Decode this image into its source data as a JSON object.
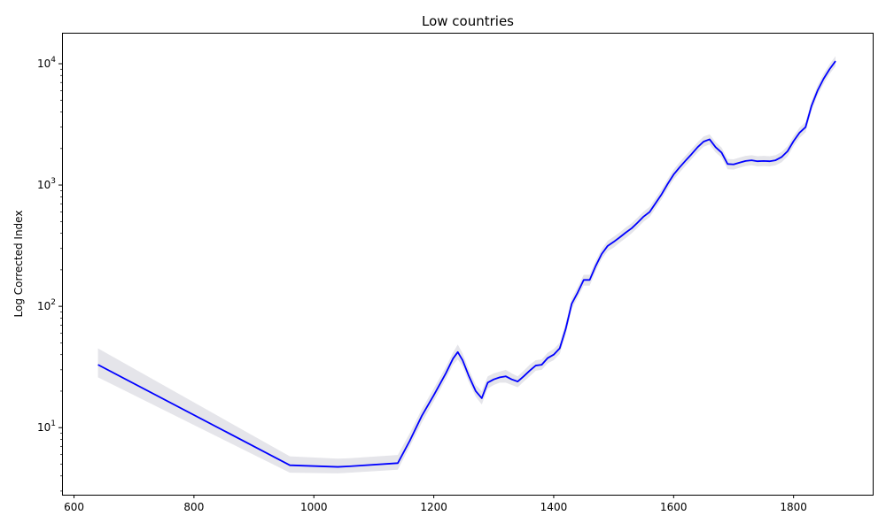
{
  "chart_data": {
    "type": "line",
    "title": "Low countries",
    "xlabel": "",
    "ylabel": "Log Corrected Index",
    "y_scale": "log",
    "xlim": [
      580,
      1932
    ],
    "ylim": [
      2.8,
      18000
    ],
    "x_ticks": [
      600,
      800,
      1000,
      1200,
      1400,
      1600,
      1800
    ],
    "y_ticks": [
      {
        "value": 10,
        "base": "10",
        "exp": "1"
      },
      {
        "value": 100,
        "base": "10",
        "exp": "2"
      },
      {
        "value": 1000,
        "base": "10",
        "exp": "3"
      },
      {
        "value": 10000,
        "base": "10",
        "exp": "4"
      }
    ],
    "grid": false,
    "series": [
      {
        "color": "#0000ff",
        "band_color": "#e5e5ea",
        "x": [
          640,
          960,
          1040,
          1060,
          1140,
          1160,
          1180,
          1200,
          1220,
          1232,
          1240,
          1248,
          1258,
          1270,
          1280,
          1290,
          1300,
          1310,
          1320,
          1330,
          1340,
          1350,
          1360,
          1370,
          1380,
          1390,
          1400,
          1410,
          1420,
          1430,
          1440,
          1450,
          1460,
          1470,
          1480,
          1490,
          1500,
          1510,
          1520,
          1530,
          1540,
          1550,
          1560,
          1570,
          1580,
          1590,
          1600,
          1610,
          1620,
          1630,
          1640,
          1650,
          1660,
          1670,
          1680,
          1690,
          1700,
          1710,
          1720,
          1730,
          1740,
          1750,
          1760,
          1770,
          1780,
          1790,
          1800,
          1810,
          1820,
          1830,
          1840,
          1850,
          1860,
          1870
        ],
        "y": [
          33,
          4.9,
          4.75,
          4.8,
          5.1,
          7.8,
          12.5,
          18.5,
          28,
          37,
          42,
          36,
          27,
          20,
          17.5,
          23.5,
          25,
          26,
          26.5,
          25,
          24,
          26.5,
          29.5,
          32.5,
          33,
          37.5,
          40,
          45,
          65,
          105,
          130,
          165,
          165,
          215,
          270,
          315,
          340,
          370,
          405,
          440,
          490,
          550,
          600,
          710,
          840,
          1020,
          1220,
          1400,
          1590,
          1800,
          2050,
          2280,
          2380,
          2050,
          1850,
          1490,
          1480,
          1530,
          1580,
          1600,
          1570,
          1580,
          1570,
          1600,
          1700,
          1900,
          2300,
          2700,
          3000,
          4500,
          6000,
          7500,
          9000,
          10500
        ],
        "lower": [
          26,
          4.25,
          4.2,
          4.25,
          4.5,
          7.0,
          11.0,
          16.5,
          25,
          33,
          36.5,
          32,
          24,
          18,
          15.5,
          21,
          22.5,
          23.5,
          23.5,
          22.5,
          21.5,
          24,
          26.5,
          29.5,
          30,
          34,
          36,
          40.5,
          58,
          95,
          118,
          148,
          148,
          195,
          245,
          285,
          305,
          335,
          365,
          400,
          445,
          500,
          545,
          645,
          765,
          930,
          1110,
          1270,
          1445,
          1640,
          1860,
          2070,
          2160,
          1860,
          1680,
          1350,
          1340,
          1390,
          1435,
          1455,
          1425,
          1435,
          1425,
          1455,
          1540,
          1720,
          2090,
          2450,
          2720,
          4100,
          5450,
          6800,
          8200,
          9550
        ],
        "upper": [
          45,
          5.8,
          5.55,
          5.6,
          5.95,
          9.0,
          14.2,
          21,
          31.5,
          41.5,
          48.5,
          41,
          30.5,
          22.5,
          20,
          26.5,
          28,
          29,
          30,
          28,
          26.5,
          29.5,
          33,
          36,
          36.5,
          41.5,
          44.5,
          50,
          73,
          116,
          144,
          182,
          182,
          237,
          297,
          347,
          375,
          407,
          446,
          484,
          540,
          605,
          660,
          780,
          925,
          1120,
          1340,
          1540,
          1750,
          1980,
          2255,
          2510,
          2620,
          2255,
          2035,
          1640,
          1630,
          1685,
          1740,
          1760,
          1730,
          1740,
          1730,
          1760,
          1870,
          2090,
          2530,
          2970,
          3300,
          4950,
          6600,
          8250,
          9900,
          11550
        ]
      }
    ]
  }
}
